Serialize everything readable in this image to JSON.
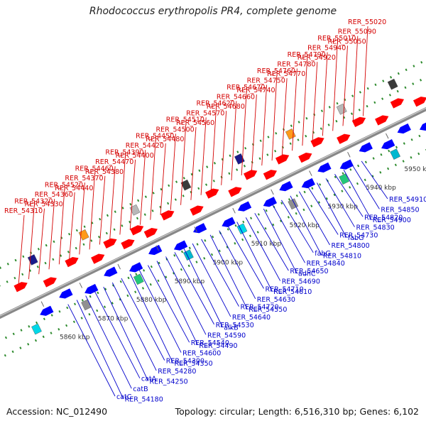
{
  "title": "Rhodococcus erythropolis PR4, complete genome",
  "accession_text": "Accession: NC_012490",
  "topology_text": "Topology: circular; Length: 6,516,310 bp; Genes: 6,102",
  "colors": {
    "forward_label": "#d40000",
    "reverse_label": "#0000cc",
    "forward_gene": "#ff0000",
    "reverse_gene": "#0000ff",
    "backbone": "#888888",
    "tick": "#2e8b2e"
  },
  "kbp_ticks": [
    "5860 kbp",
    "5870 kbp",
    "5880 kbp",
    "5890 kbp",
    "5900 kbp",
    "5910 kbp",
    "5920 kbp",
    "5930 kbp",
    "5940 kbp",
    "5950 kbp"
  ],
  "forward_labels": [
    "RER_55020",
    "RER_55090",
    "RER_55050",
    "RER_55010",
    "RER_54940",
    "RER_54920",
    "RER_54790",
    "RER_54780",
    "RER_54770",
    "RER_54760",
    "RER_54750",
    "RER_54740",
    "RER_54670",
    "RER_54660",
    "RER_54680",
    "RER_54620",
    "RER_54570",
    "RER_54560",
    "RER_54510",
    "RER_54500",
    "RER_54480",
    "RER_54450",
    "RER_54420",
    "RER_54400",
    "RER_54390",
    "RER_54470",
    "RER_54380",
    "RER_54460",
    "RER_54370",
    "RER_54440",
    "RER_54520",
    "RER_54360",
    "RER_54330",
    "RER_54320",
    "RER_54310"
  ],
  "reverse_labels": [
    "RER_54910",
    "RER_54850",
    "RER_54900",
    "RER_54820",
    "RER_54830",
    "fabG",
    "RER_54730",
    "RER_54800",
    "RER_54810",
    "fabG",
    "RER_54840",
    "adhC",
    "RER_54650",
    "RER_54690",
    "RER_54610",
    "RER_54710",
    "RER_54630",
    "RER_54550",
    "RER_54720",
    "RER_54640",
    "alkB",
    "RER_54530",
    "RER_54590",
    "RER_54490",
    "RER_54540",
    "RER_54600",
    "RER_54350",
    "RER_54300",
    "RER_54280",
    "RER_54250",
    "catA",
    "catB",
    "RER_54180",
    "catC"
  ]
}
